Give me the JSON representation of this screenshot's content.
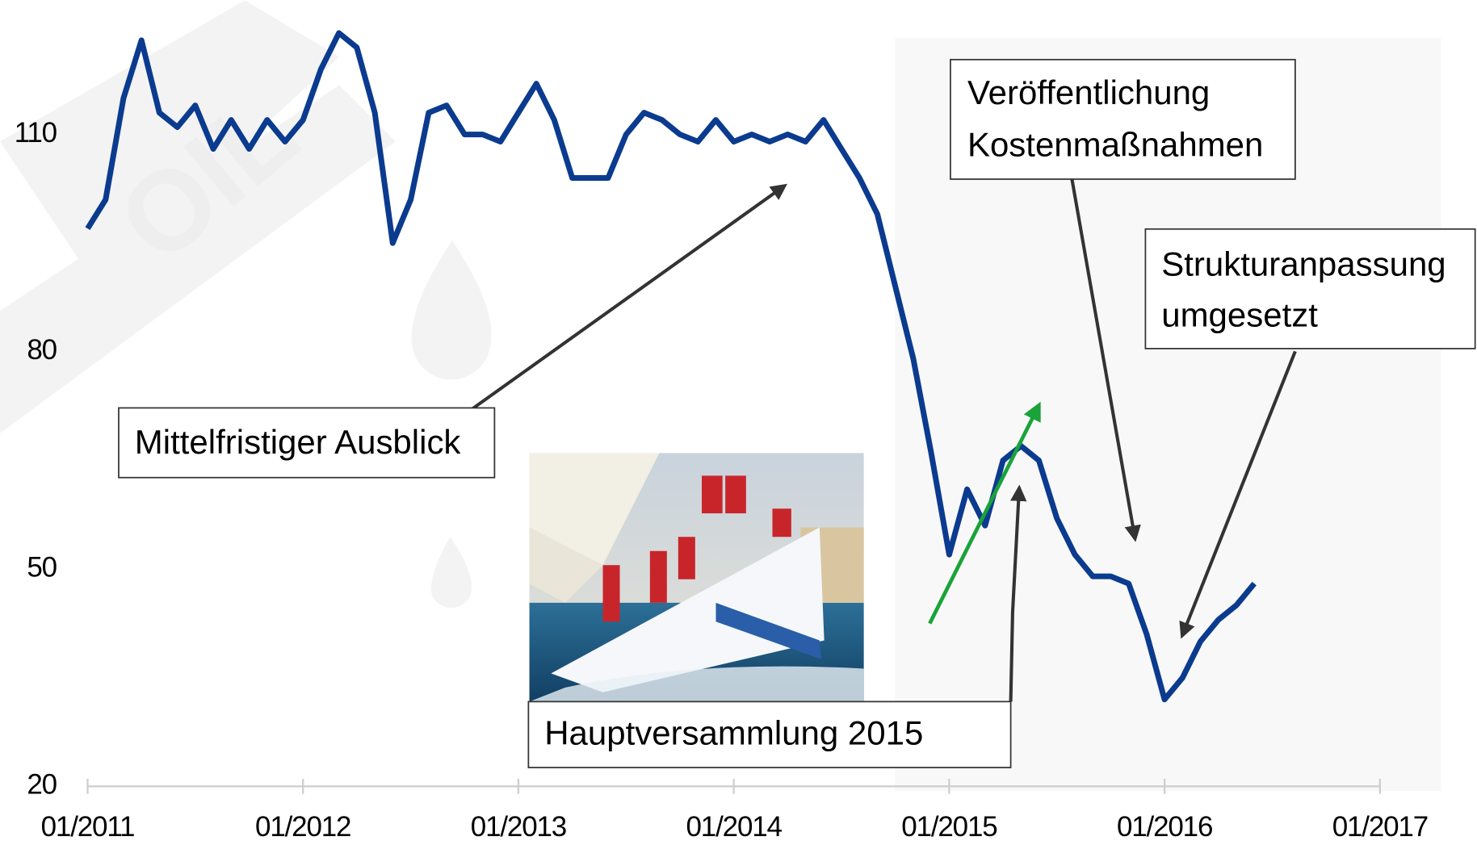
{
  "chart_data": {
    "type": "line",
    "x": [
      "01/2011",
      "02/2011",
      "03/2011",
      "04/2011",
      "05/2011",
      "06/2011",
      "07/2011",
      "08/2011",
      "09/2011",
      "10/2011",
      "11/2011",
      "12/2011",
      "01/2012",
      "02/2012",
      "03/2012",
      "04/2012",
      "05/2012",
      "06/2012",
      "07/2012",
      "08/2012",
      "09/2012",
      "10/2012",
      "11/2012",
      "12/2012",
      "01/2013",
      "02/2013",
      "03/2013",
      "04/2013",
      "05/2013",
      "06/2013",
      "07/2013",
      "08/2013",
      "09/2013",
      "10/2013",
      "11/2013",
      "12/2013",
      "01/2014",
      "02/2014",
      "03/2014",
      "04/2014",
      "05/2014",
      "06/2014",
      "07/2014",
      "08/2014",
      "09/2014",
      "10/2014",
      "11/2014",
      "12/2014",
      "01/2015",
      "02/2015",
      "03/2015",
      "04/2015",
      "05/2015",
      "06/2015",
      "07/2015",
      "08/2015",
      "09/2015",
      "10/2015",
      "11/2015",
      "12/2015",
      "01/2016",
      "02/2016",
      "03/2016",
      "04/2016",
      "05/2016",
      "06/2016"
    ],
    "series": [
      {
        "color": "#0b3b8f",
        "values": [
          97,
          101,
          115,
          123,
          113,
          111,
          114,
          108,
          112,
          108,
          112,
          109,
          112,
          119,
          124,
          122,
          113,
          95,
          101,
          113,
          114,
          110,
          110,
          109,
          113,
          117,
          112,
          104,
          104,
          104,
          110,
          113,
          112,
          110,
          109,
          112,
          109,
          110,
          109,
          110,
          109,
          112,
          108,
          104,
          99,
          89,
          79,
          66,
          52,
          61,
          56,
          65,
          67,
          65,
          57,
          52,
          49,
          49,
          48,
          41,
          32,
          35,
          40,
          43,
          45,
          48
        ]
      }
    ],
    "xlim": [
      "01/2011",
      "01/2017"
    ],
    "xticks": [
      "01/2011",
      "01/2012",
      "01/2013",
      "01/2014",
      "01/2015",
      "01/2016",
      "01/2017"
    ],
    "ylim": [
      20,
      128
    ],
    "yticks": [
      20,
      50,
      80,
      110
    ],
    "annotations": [
      [
        "Mittelfristiger Ausblick"
      ],
      [
        "Hauptversammlung 2015"
      ],
      [
        "Veröffentlichung",
        "Kostenmaßnahmen"
      ],
      [
        "Strukturanpassung",
        "umgesetzt"
      ]
    ]
  }
}
